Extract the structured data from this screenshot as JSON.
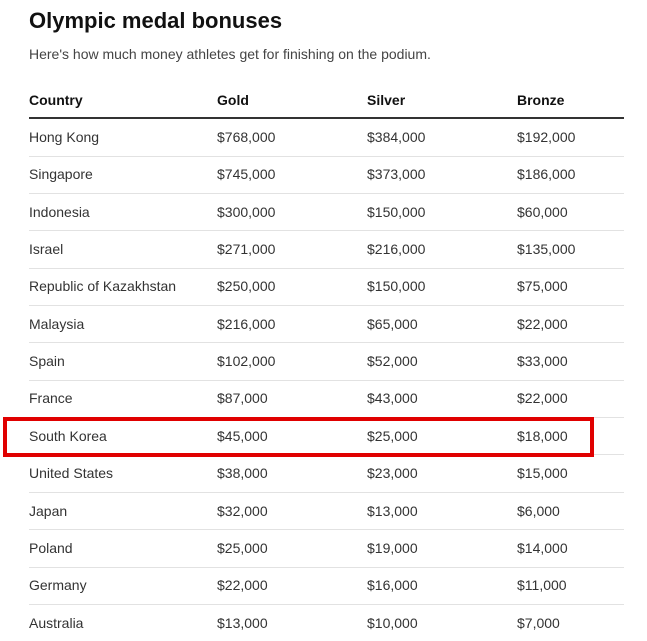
{
  "header": {
    "title": "Olympic medal bonuses",
    "subtitle": "Here's how much money athletes get for finishing on the podium."
  },
  "table": {
    "columns": [
      "Country",
      "Gold",
      "Silver",
      "Bronze"
    ],
    "rows": [
      [
        "Hong Kong",
        "$768,000",
        "$384,000",
        "$192,000"
      ],
      [
        "Singapore",
        "$745,000",
        "$373,000",
        "$186,000"
      ],
      [
        "Indonesia",
        "$300,000",
        "$150,000",
        "$60,000"
      ],
      [
        "Israel",
        "$271,000",
        "$216,000",
        "$135,000"
      ],
      [
        "Republic of Kazakhstan",
        "$250,000",
        "$150,000",
        "$75,000"
      ],
      [
        "Malaysia",
        "$216,000",
        "$65,000",
        "$22,000"
      ],
      [
        "Spain",
        "$102,000",
        "$52,000",
        "$33,000"
      ],
      [
        "France",
        "$87,000",
        "$43,000",
        "$22,000"
      ],
      [
        "South Korea",
        "$45,000",
        "$25,000",
        "$18,000"
      ],
      [
        "United States",
        "$38,000",
        "$23,000",
        "$15,000"
      ],
      [
        "Japan",
        "$32,000",
        "$13,000",
        "$6,000"
      ],
      [
        "Poland",
        "$25,000",
        "$19,000",
        "$14,000"
      ],
      [
        "Germany",
        "$22,000",
        "$16,000",
        "$11,000"
      ],
      [
        "Australia",
        "$13,000",
        "$10,000",
        "$7,000"
      ]
    ]
  }
}
